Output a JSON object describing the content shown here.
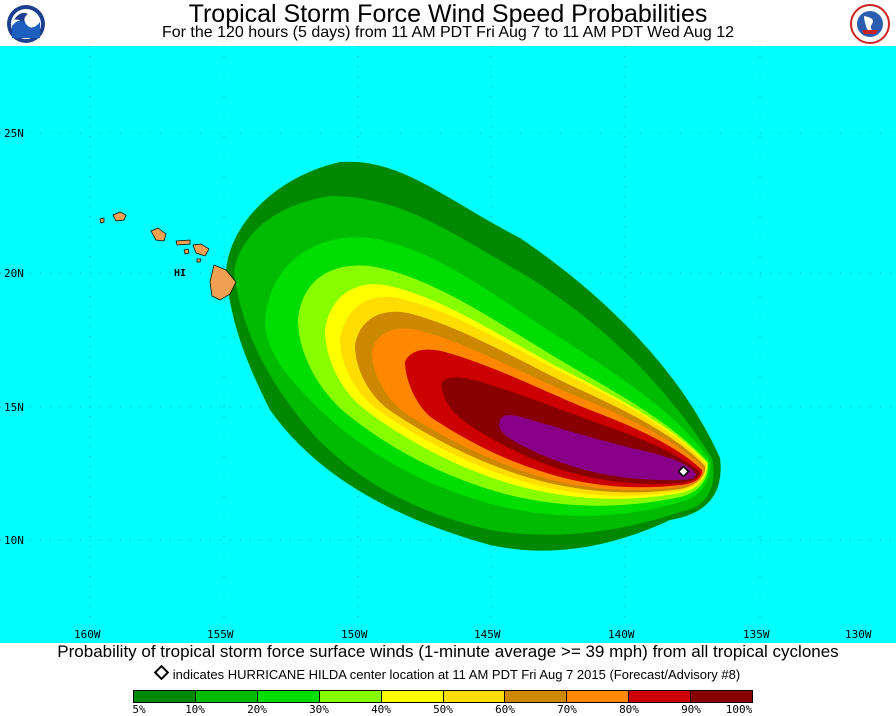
{
  "header": {
    "title": "Tropical Storm Force Wind Speed Probabilities",
    "subtitle": "For the 120 hours (5 days) from 11 AM PDT Fri Aug 7 to 11 AM PDT Wed Aug 12"
  },
  "logos": {
    "left": "noaa-logo",
    "right": "nws-logo"
  },
  "map": {
    "ocean_color": "#00ffff",
    "land_color": "#f0a050",
    "latitude_labels": [
      "25N",
      "20N",
      "15N",
      "10N"
    ],
    "longitude_labels": [
      "160W",
      "155W",
      "150W",
      "145W",
      "140W",
      "135W",
      "130W"
    ],
    "state_label": "HI",
    "storm_center": {
      "name": "HURRICANE HILDA",
      "lat": 12.6,
      "lon": -137.2
    }
  },
  "footer": {
    "caption": "Probability of tropical storm force surface winds (1-minute average >= 39 mph) from all tropical cyclones",
    "note": "indicates HURRICANE HILDA center location at 11 AM PDT Fri Aug 7 2015 (Forecast/Advisory #8)"
  },
  "legend": {
    "colors": [
      "#008800",
      "#00bb00",
      "#00dd00",
      "#88ff00",
      "#ffff00",
      "#ffdd00",
      "#cc8800",
      "#ff8800",
      "#cc0000",
      "#880000",
      "#880088"
    ],
    "labels": [
      "5%",
      "10%",
      "20%",
      "30%",
      "40%",
      "50%",
      "60%",
      "70%",
      "80%",
      "90%",
      "100%"
    ]
  }
}
